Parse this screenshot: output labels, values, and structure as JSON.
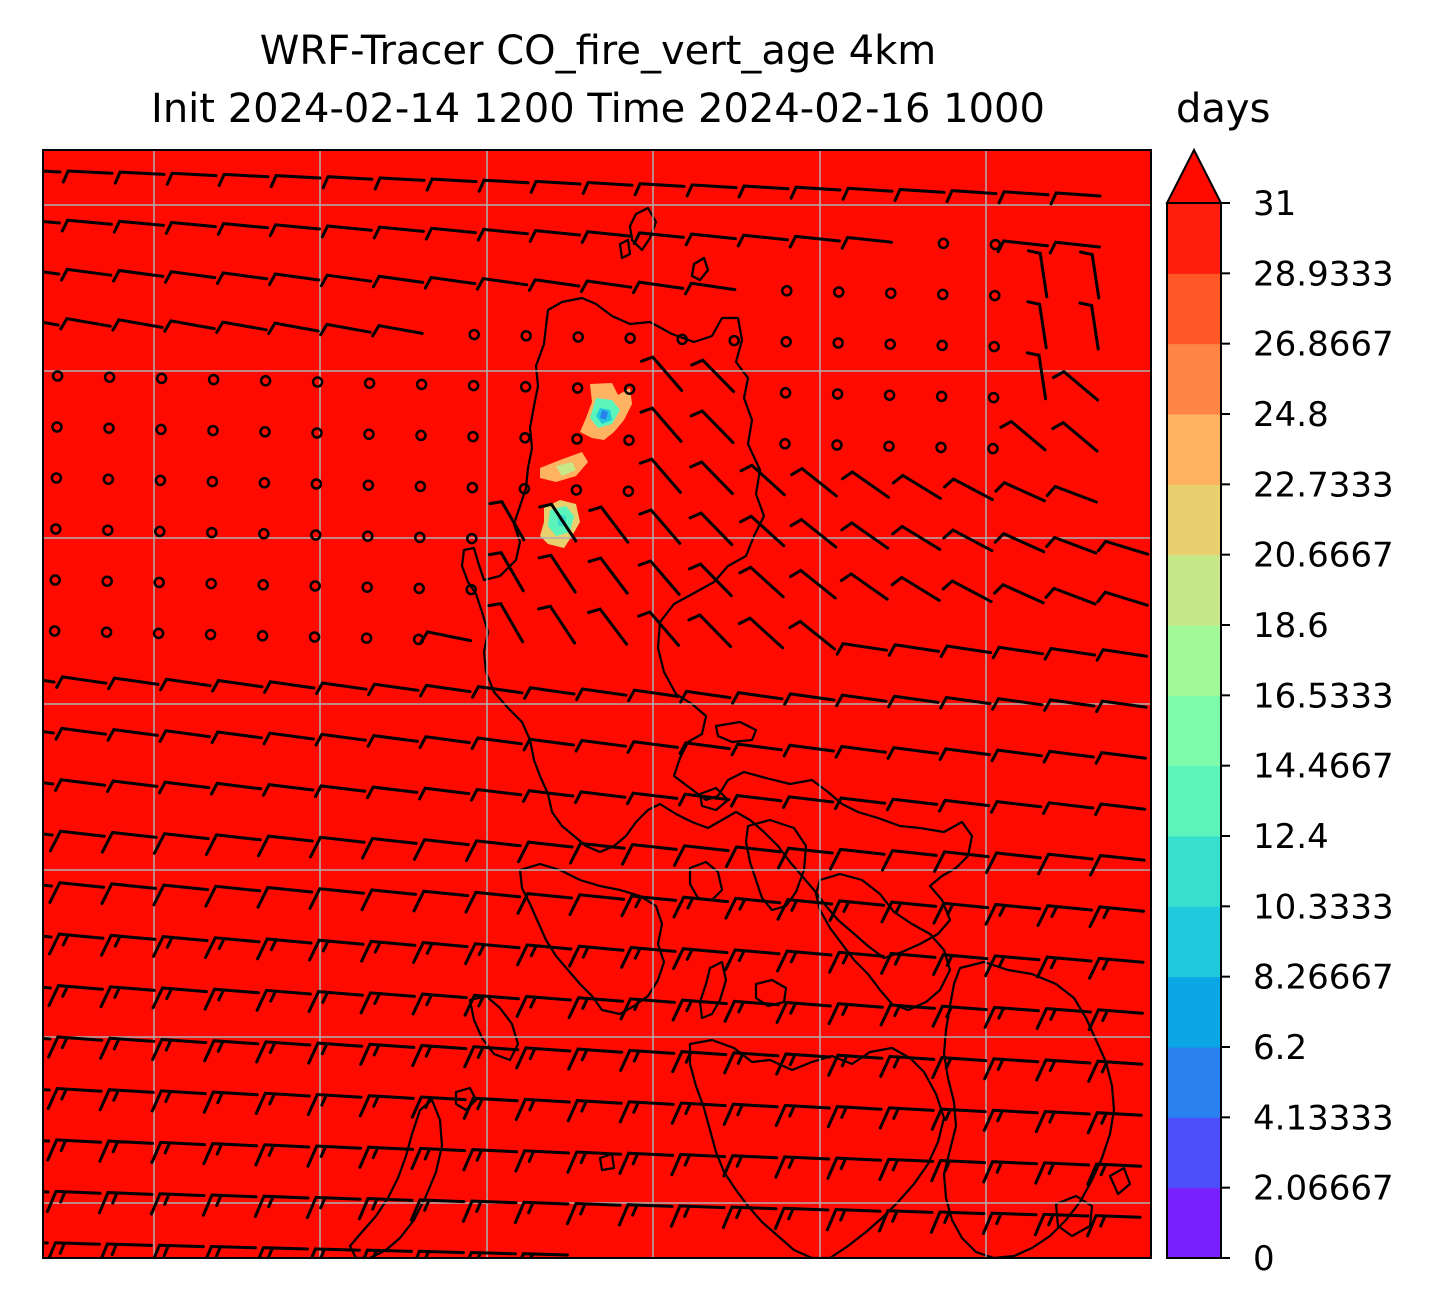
{
  "figure": {
    "title_line1": "WRF-Tracer CO_fire_vert_age 4km",
    "title_line2": "Init 2024-02-14 1200 Time 2024-02-16 1000",
    "colorbar_units": "days"
  },
  "colors": {
    "background_field": "#ff0a00",
    "gridline": "#b0b0b0",
    "coastline": "#000000",
    "barb": "#000000"
  },
  "chart_data": {
    "type": "filled contour map with wind barbs",
    "variable": "CO_fire_vert_age",
    "units": "days",
    "colorbar": {
      "extend": "max",
      "ticks": [
        "0",
        "2.06667",
        "4.13333",
        "6.2",
        "8.26667",
        "10.3333",
        "12.4",
        "14.4667",
        "16.5333",
        "18.6",
        "20.6667",
        "22.7333",
        "24.8",
        "26.8667",
        "28.9333",
        "31"
      ],
      "levels": [
        0,
        2.06667,
        4.13333,
        6.2,
        8.26667,
        10.3333,
        12.4,
        14.4667,
        16.5333,
        18.6,
        20.6667,
        22.7333,
        24.8,
        26.8667,
        28.9333,
        31
      ],
      "level_colors": [
        "#7a20fe",
        "#4c4ffa",
        "#2981f0",
        "#0aa6e6",
        "#1fc8dd",
        "#37e0cd",
        "#5bf5bb",
        "#7efcab",
        "#a2f998",
        "#c6e889",
        "#e8d06f",
        "#ffb260",
        "#ff8544",
        "#ff5727",
        "#ff1e0e"
      ],
      "over_color": "#ff0a00"
    },
    "field_summary": "Nearly the entire domain is at or above 31 days; small low-age patches (about 6-16 days) appear in the northern-central part of the map.",
    "gridlines": true,
    "wind_barbs": true,
    "coastlines": true
  }
}
